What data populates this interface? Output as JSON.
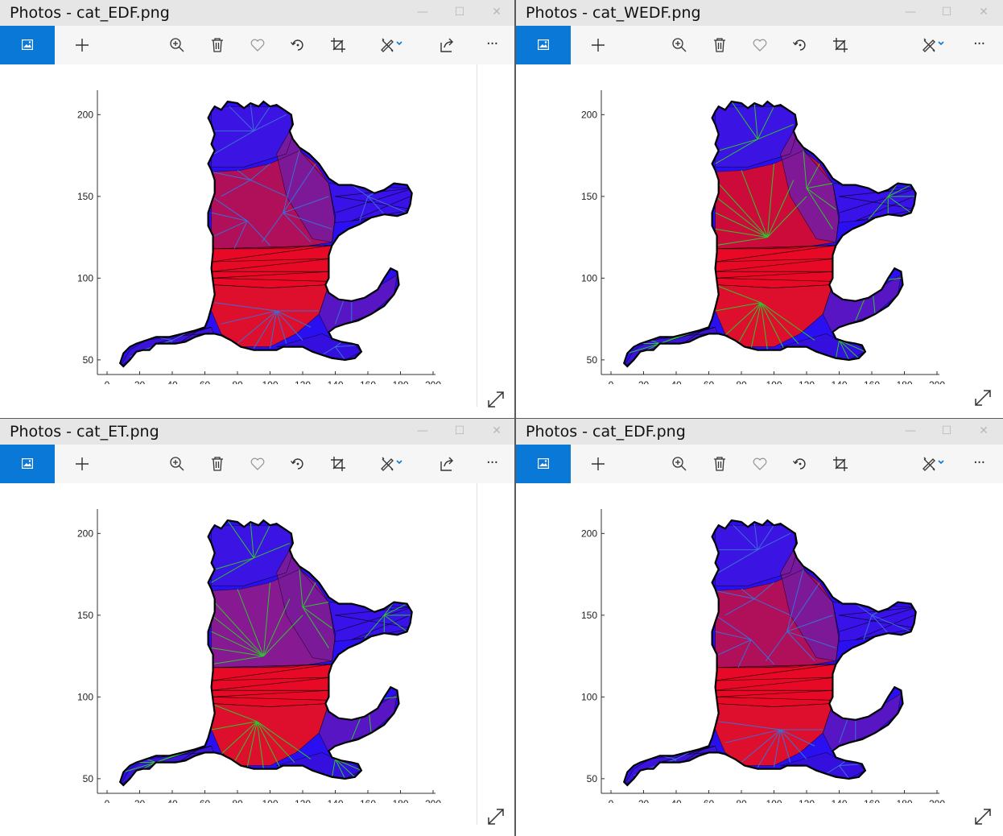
{
  "windows": [
    {
      "title": "Photos - cat_EDF.png",
      "variant": "edf",
      "share": true
    },
    {
      "title": "Photos - cat_WEDF.png",
      "variant": "wedf",
      "share": false
    },
    {
      "title": "Photos - cat_ET.png",
      "variant": "et",
      "share": true
    },
    {
      "title": "Photos - cat_EDF.png",
      "variant": "edf2",
      "share": false
    }
  ],
  "toolbar": {
    "icons": [
      "photos-home-icon",
      "add-icon",
      "zoom-in-icon",
      "delete-icon",
      "favorite-icon",
      "rotate-icon",
      "crop-icon",
      "edit-draw-icon",
      "share-icon",
      "more-icon"
    ],
    "more_label": "···"
  },
  "window_controls": {
    "minimize": "—",
    "maximize": "☐",
    "close": "✕"
  },
  "axes": {
    "x_ticks": [
      "0",
      "20",
      "40",
      "60",
      "80",
      "100",
      "120",
      "140",
      "160",
      "180",
      "200"
    ],
    "y_ticks": [
      "200",
      "150",
      "100",
      "50"
    ],
    "xlim": [
      0,
      200
    ],
    "ylim": [
      45,
      205
    ]
  },
  "colors": {
    "accent": "#0a78d7",
    "edge_blue": "#3c6ed8",
    "edge_green": "#2fc42f",
    "body_red": "#ff0a0a",
    "body_purple": "#7a1a9a",
    "body_blue": "#2410ff"
  }
}
